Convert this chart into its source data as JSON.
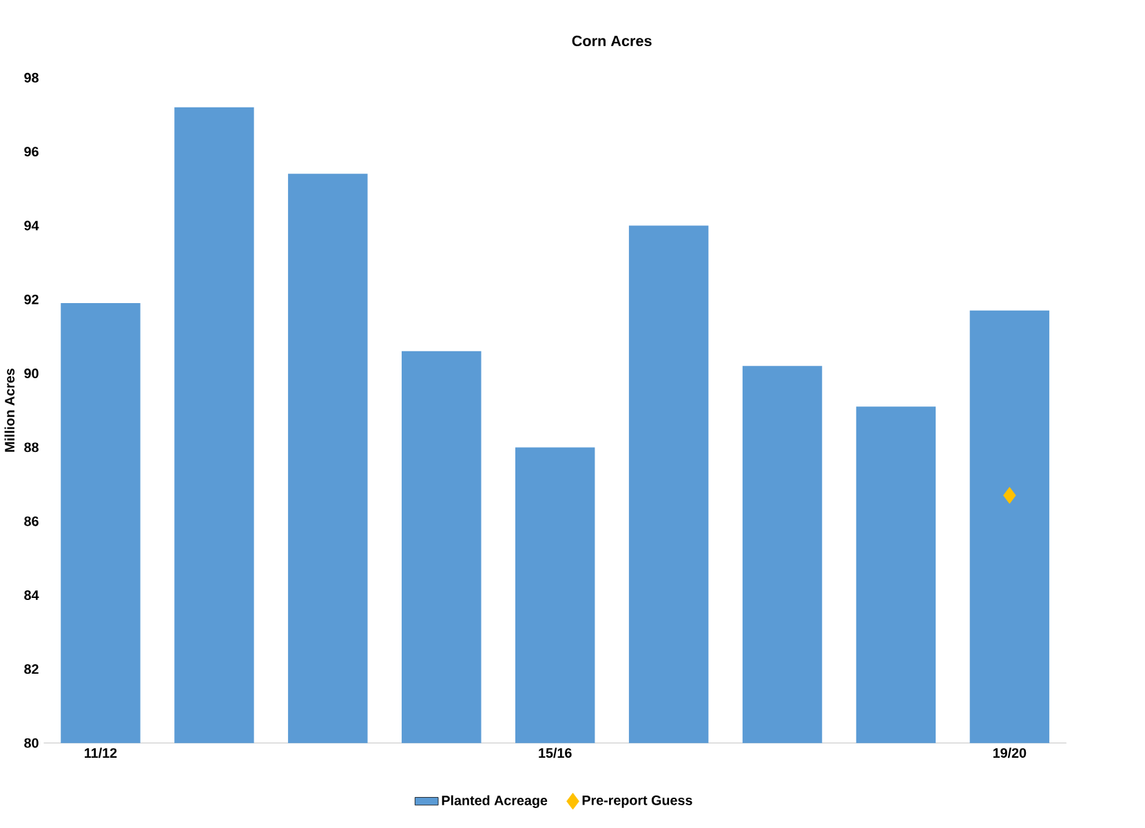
{
  "chart_data": {
    "type": "bar",
    "title": "Corn Acres",
    "ylabel": "Million Acres",
    "categories": [
      "11/12",
      null,
      null,
      null,
      "15/16",
      null,
      null,
      null,
      "19/20"
    ],
    "series": [
      {
        "name": "Planted Acreage",
        "color": "#5b9bd5",
        "values": [
          91.9,
          97.2,
          95.4,
          90.6,
          88.0,
          94.0,
          90.2,
          89.1,
          91.7
        ]
      },
      {
        "name": "Pre-report Guess",
        "type": "scatter",
        "color": "#ffc000",
        "marker": "diamond",
        "x": [
          "19/20"
        ],
        "values": [
          86.7
        ]
      }
    ],
    "ylim": [
      80,
      98
    ],
    "yticks": [
      80,
      82,
      84,
      86,
      88,
      90,
      92,
      94,
      96,
      98
    ],
    "grid": false,
    "legend": "bottom"
  }
}
